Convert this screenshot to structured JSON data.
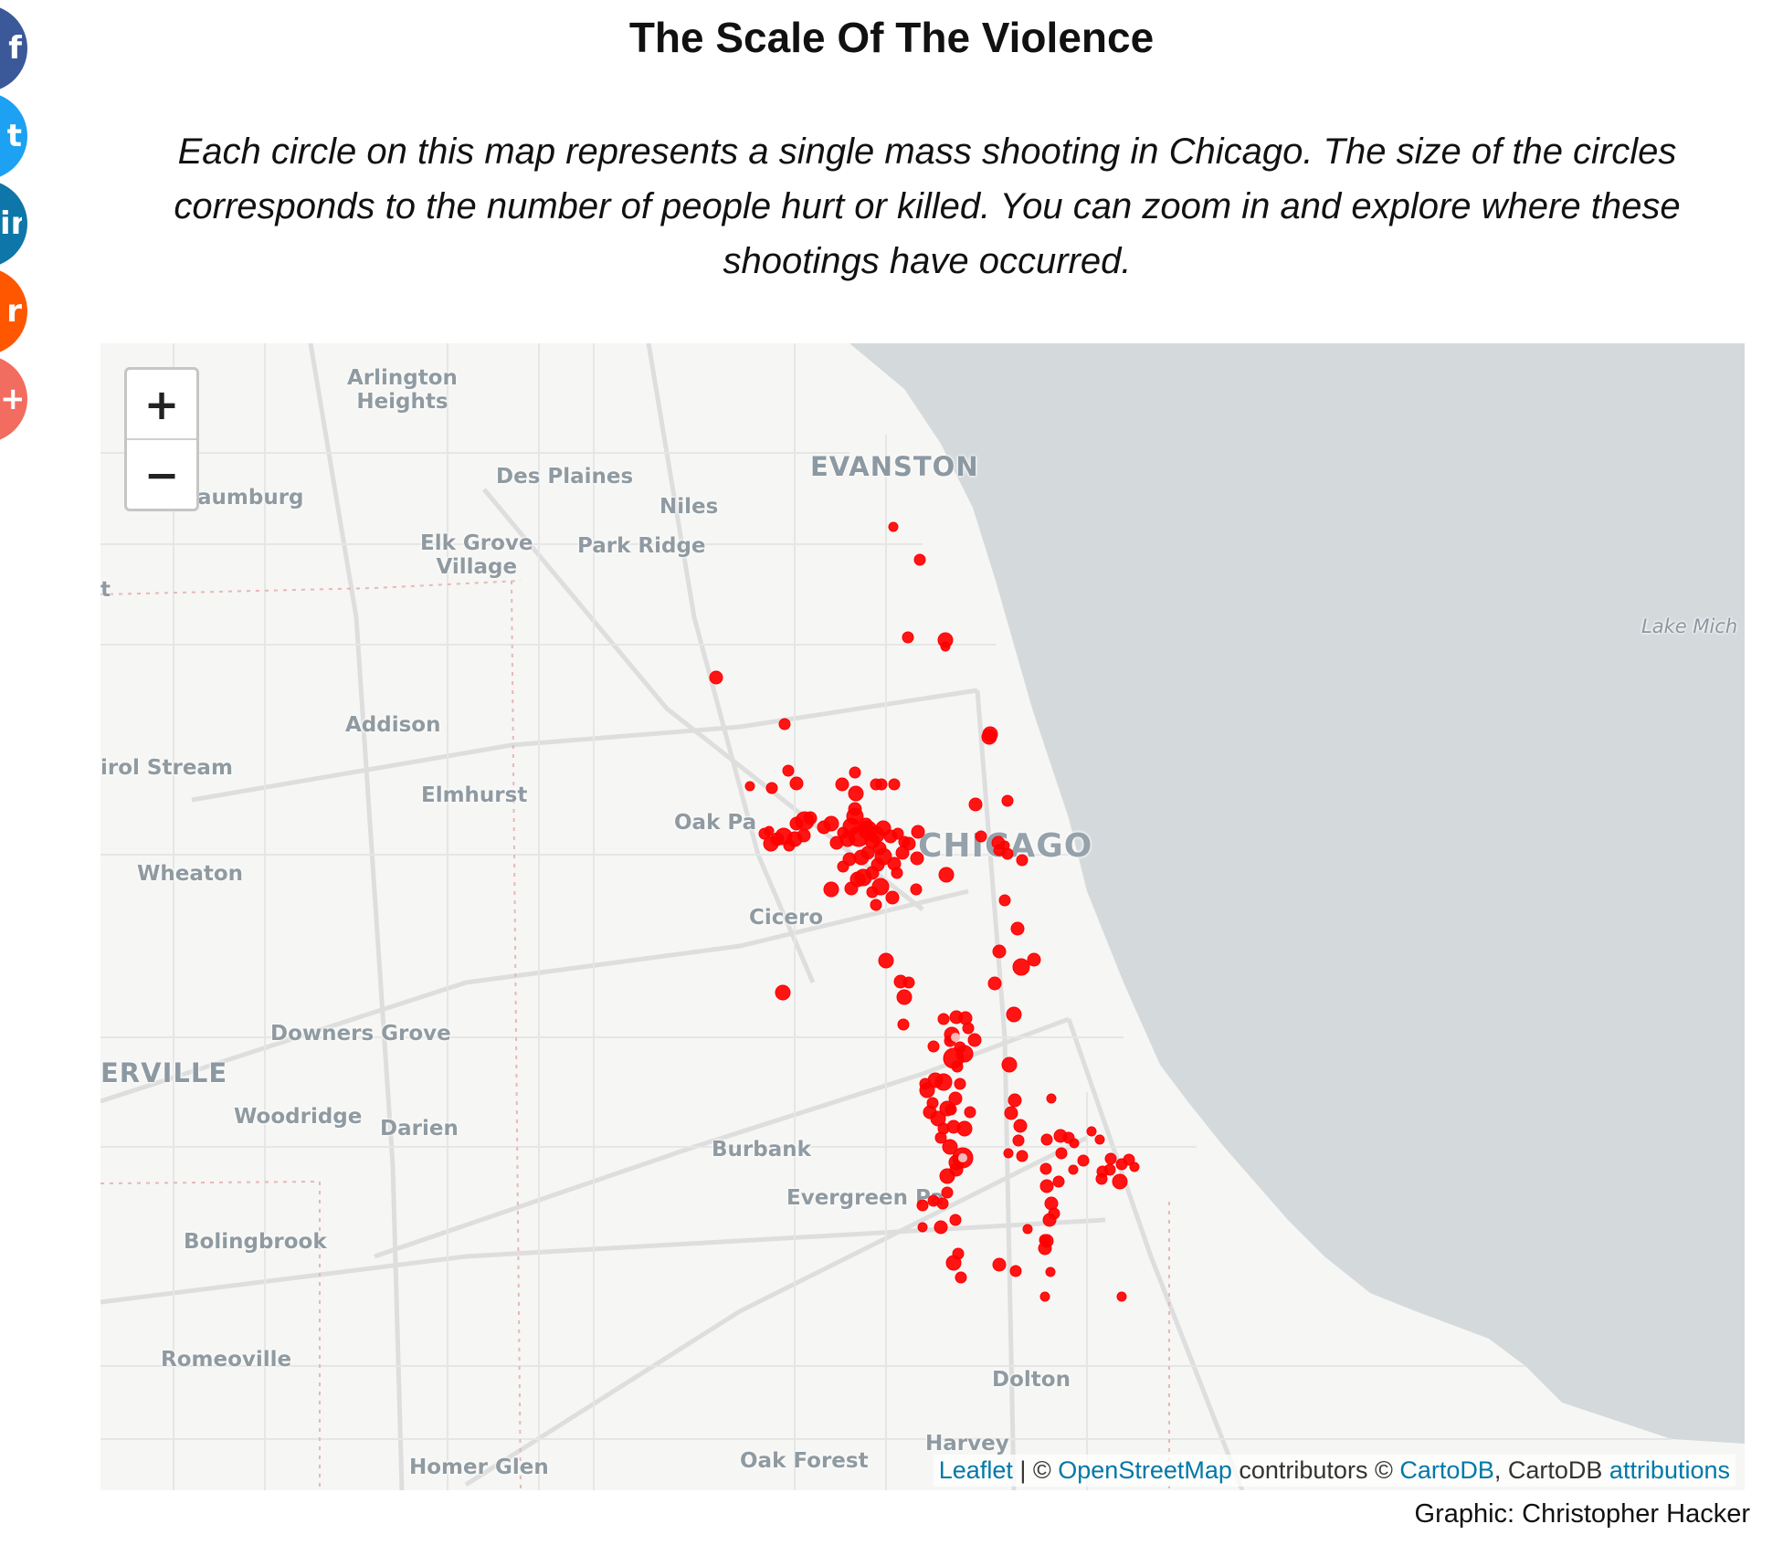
{
  "page": {
    "title": "The Scale Of The Violence",
    "intro": "Each circle on this map represents a single mass shooting in Chicago. The size of the circles corresponds to the number of people hurt or killed. You can zoom in and explore where these shootings have occurred.",
    "credit": "Graphic: Christopher Hacker"
  },
  "share_buttons": [
    {
      "name": "facebook",
      "glyph": "f",
      "color": "#3b5998"
    },
    {
      "name": "twitter",
      "glyph": "t",
      "color": "#1da1f2"
    },
    {
      "name": "linkedin",
      "glyph": "in",
      "color": "#0e76a8"
    },
    {
      "name": "reddit",
      "glyph": "r",
      "color": "#ff5700"
    },
    {
      "name": "more",
      "glyph": "+",
      "color": "#f26c5f"
    }
  ],
  "map": {
    "zoom_in": "+",
    "zoom_out": "−",
    "marker_color": "#ff0000",
    "water_color": "#d4dadc",
    "places": {
      "arlington_heights": "Arlington\nHeights",
      "des_plaines": "Des Plaines",
      "evanston": "EVANSTON",
      "schaumburg": "aumburg",
      "niles": "Niles",
      "elk_grove_village": "Elk Grove\nVillage",
      "park_ridge": "Park Ridge",
      "lake_michigan": "Lake Mich",
      "addison": "Addison",
      "carol_stream": "irol Stream",
      "elmhurst": "Elmhurst",
      "oak_park": "Oak Pa",
      "chicago": "CHICAGO",
      "wheaton": "Wheaton",
      "cicero": "Cicero",
      "downers_grove": "Downers Grove",
      "naperville": "ERVILLE",
      "woodridge": "Woodridge",
      "darien": "Darien",
      "burbank": "Burbank",
      "evergreen_park": "Evergreen Pa",
      "bolingbrook": "Bolingbrook",
      "romeoville": "Romeoville",
      "dolton": "Dolton",
      "harvey": "Harvey",
      "homer_glen": "Homer Glen",
      "oak_forest": "Oak Forest",
      "edge_left": "t"
    },
    "attribution": {
      "leaflet": "Leaflet",
      "sep1": " | © ",
      "osm": "OpenStreetMap",
      "mid": " contributors © ",
      "carto": "CartoDB",
      "mid2": ", CartoDB ",
      "attributions": "attributions"
    }
  }
}
